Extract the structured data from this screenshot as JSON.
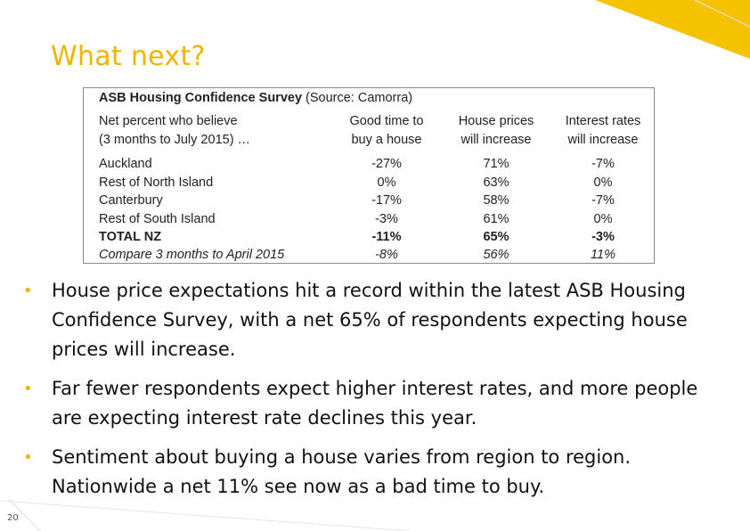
{
  "slide": {
    "title": "What next?",
    "page_number": "20",
    "accent_color": "#f0b400"
  },
  "table": {
    "title": "ASB Housing Confidence Survey",
    "source": "(Source: Camorra)",
    "header": {
      "label_line1": "Net percent who believe",
      "label_line2": "(3 months to July 2015) …",
      "col1_line1": "Good time to",
      "col1_line2": "buy a house",
      "col2_line1": "House prices",
      "col2_line2": "will increase",
      "col3_line1": "Interest rates",
      "col3_line2": "will increase"
    },
    "rows": [
      {
        "region": "Auckland",
        "good_time": "-27%",
        "house_prices": "71%",
        "interest_rates": "-7%"
      },
      {
        "region": "Rest of North Island",
        "good_time": "0%",
        "house_prices": "63%",
        "interest_rates": "0%"
      },
      {
        "region": "Canterbury",
        "good_time": "-17%",
        "house_prices": "58%",
        "interest_rates": "-7%"
      },
      {
        "region": "Rest of South Island",
        "good_time": "-3%",
        "house_prices": "61%",
        "interest_rates": "0%"
      },
      {
        "region": "TOTAL NZ",
        "good_time": "-11%",
        "house_prices": "65%",
        "interest_rates": "-3%"
      },
      {
        "region": "Compare 3 months to April 2015",
        "good_time": "-8%",
        "house_prices": "56%",
        "interest_rates": "11%"
      }
    ]
  },
  "bullets": [
    "House price expectations hit a record within the latest ASB Housing Confidence Survey, with a net 65% of respondents expecting house prices will increase.",
    "Far fewer respondents expect higher interest rates, and more people are expecting interest rate declines this year.",
    "Sentiment about buying a house varies from region to region. Nationwide a net 11% see now as a bad time to buy."
  ]
}
